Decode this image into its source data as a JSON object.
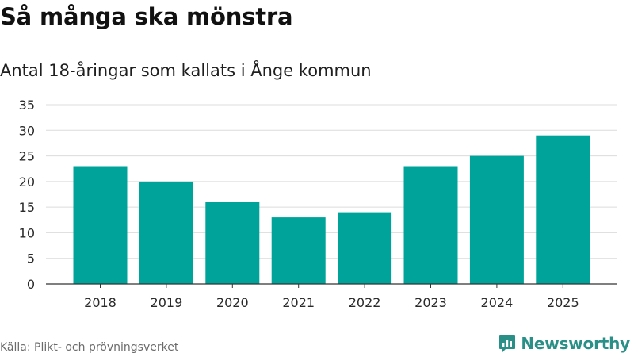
{
  "chart_data": {
    "type": "bar",
    "title": "Så många ska mönstra",
    "subtitle": "Antal 18-åringar som kallats i Ånge kommun",
    "categories": [
      "2018",
      "2019",
      "2020",
      "2021",
      "2022",
      "2023",
      "2024",
      "2025"
    ],
    "values": [
      23,
      20,
      16,
      13,
      14,
      23,
      25,
      29
    ],
    "xlabel": "",
    "ylabel": "",
    "ylim": [
      0,
      35
    ],
    "yticks": [
      0,
      5,
      10,
      15,
      20,
      25,
      30,
      35
    ],
    "grid": true,
    "legend": "none",
    "bar_color": "#00a39a"
  },
  "footer": {
    "source": "Källa: Plikt- och prövningsverket"
  },
  "brand": {
    "name": "Newsworthy",
    "icon": "newsworthy-logo-icon",
    "color": "#2a8f87"
  }
}
